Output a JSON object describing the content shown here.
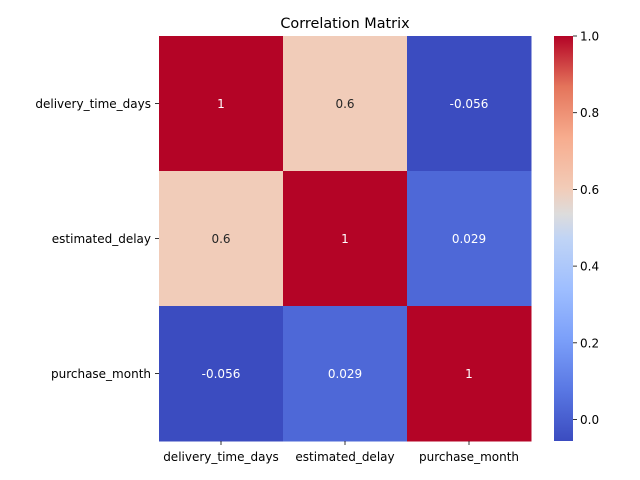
{
  "chart_data": {
    "type": "heatmap",
    "title": "Correlation Matrix",
    "xlabel": "",
    "ylabel": "",
    "x_categories": [
      "delivery_time_days",
      "estimated_delay",
      "purchase_month"
    ],
    "y_categories": [
      "delivery_time_days",
      "estimated_delay",
      "purchase_month"
    ],
    "values": [
      [
        1,
        0.6,
        -0.056
      ],
      [
        0.6,
        1,
        0.029
      ],
      [
        -0.056,
        0.029,
        1
      ]
    ],
    "cell_labels": [
      [
        "1",
        "0.6",
        "-0.056"
      ],
      [
        "0.6",
        "1",
        "0.029"
      ],
      [
        "-0.056",
        "0.029",
        "1"
      ]
    ],
    "colormap": "coolwarm",
    "colorbar": {
      "range": [
        -0.056,
        1.0
      ],
      "ticks": [
        0.0,
        0.2,
        0.4,
        0.6,
        0.8,
        1.0
      ],
      "tick_labels": [
        "0.0",
        "0.2",
        "0.4",
        "0.6",
        "0.8",
        "1.0"
      ]
    },
    "annotation_colors": {
      "dark": "#ffffff",
      "light": "#262626"
    }
  }
}
